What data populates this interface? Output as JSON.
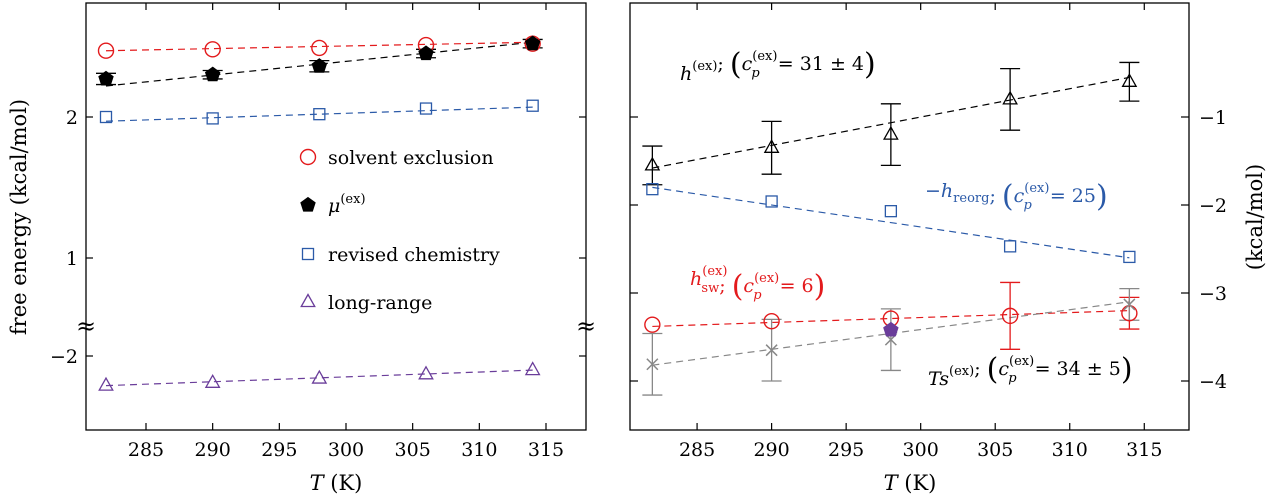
{
  "chart_data": [
    {
      "type": "scatter",
      "panel": "left",
      "xlabel": "T (K)",
      "ylabel": "free energy (kcal/mol)",
      "xlim": [
        280.5,
        318
      ],
      "x_ticks": [
        285,
        290,
        295,
        300,
        305,
        310,
        315
      ],
      "y_ticks": [
        {
          "value": 2,
          "label": "2"
        },
        {
          "value": 1,
          "label": "1"
        },
        {
          "value": -2,
          "label": "−2"
        }
      ],
      "axis_break": "≈",
      "legend_placement": "center",
      "series": [
        {
          "name": "solvent exclusion",
          "marker": "circle",
          "color": "#e31a1c",
          "x": [
            282,
            290,
            298,
            306,
            314
          ],
          "y": [
            2.47,
            2.48,
            2.49,
            2.51,
            2.52
          ],
          "fit": [
            2.47,
            2.53
          ]
        },
        {
          "name": "μ(ex)",
          "marker": "pentagon",
          "color": "#000000",
          "x": [
            282,
            290,
            298,
            306,
            314
          ],
          "y": [
            2.27,
            2.3,
            2.36,
            2.45,
            2.52
          ],
          "err": [
            0.04,
            0.03,
            0.04,
            0.03,
            0.03
          ],
          "fit": [
            2.22,
            2.53
          ]
        },
        {
          "name": "revised chemistry",
          "marker": "square",
          "color": "#2b5aa8",
          "x": [
            282,
            290,
            298,
            306,
            314
          ],
          "y": [
            2.0,
            1.99,
            2.02,
            2.06,
            2.08
          ],
          "fit": [
            1.97,
            2.07
          ]
        },
        {
          "name": "long-range",
          "marker": "triangle",
          "color": "#6a3d9a",
          "x": [
            282,
            290,
            298,
            306,
            314
          ],
          "y": [
            -2.21,
            -2.19,
            -2.16,
            -2.13,
            -2.1
          ],
          "fit": [
            -2.21,
            -2.1
          ]
        }
      ]
    },
    {
      "type": "scatter",
      "panel": "right",
      "xlabel": "T (K)",
      "ylabel": "(kcal/mol)",
      "xlim": [
        280.5,
        318
      ],
      "ylim": [
        -4.45,
        -0.05
      ],
      "x_ticks": [
        285,
        290,
        295,
        300,
        305,
        310,
        315
      ],
      "y_ticks": [
        {
          "value": -1,
          "label": "−1"
        },
        {
          "value": -2,
          "label": "−2"
        },
        {
          "value": -3,
          "label": "−3"
        },
        {
          "value": -4,
          "label": "−4"
        }
      ],
      "series": [
        {
          "name": "h(ex); (cp(ex) = 31 ± 4)",
          "marker": "triangle",
          "color": "#000000",
          "x": [
            282,
            290,
            298,
            306,
            314
          ],
          "y": [
            -1.55,
            -1.35,
            -1.2,
            -0.8,
            -0.6
          ],
          "err": [
            0.22,
            0.3,
            0.35,
            0.35,
            0.22
          ],
          "fit": [
            -1.58,
            -0.55
          ]
        },
        {
          "name": "−h_reorg; (cp(ex) = 25)",
          "marker": "square",
          "color": "#2b5aa8",
          "x": [
            282,
            290,
            298,
            306,
            314
          ],
          "y": [
            -1.82,
            -1.96,
            -2.07,
            -2.47,
            -2.59
          ],
          "fit": [
            -1.8,
            -2.6
          ]
        },
        {
          "name": "h_sw(ex); (cp(ex) = 6)",
          "marker": "circle",
          "color": "#e31a1c",
          "x": [
            282,
            290,
            298,
            306,
            314
          ],
          "y": [
            -3.36,
            -3.32,
            -3.29,
            -3.26,
            -3.23
          ],
          "err": [
            0,
            0,
            0,
            0.38,
            0.18
          ],
          "fit": [
            -3.38,
            -3.2
          ]
        },
        {
          "name": "Ts(ex); (cp(ex) = 34 ± 5)",
          "marker": "cross",
          "color": "#888888",
          "x": [
            282,
            290,
            298,
            306,
            314
          ],
          "y": [
            -3.81,
            -3.65,
            -3.53,
            null,
            -3.13
          ],
          "err": [
            0.35,
            0.35,
            0.35,
            0,
            0.18
          ],
          "fit": [
            -3.82,
            -3.1
          ]
        },
        {
          "name": "",
          "marker": "pentagon",
          "color": "#6a3d9a",
          "x": [
            298
          ],
          "y": [
            -3.42
          ]
        }
      ],
      "annotations": {
        "h_ex": {
          "base": "h",
          "sup": "(ex)",
          "sep": "; (",
          "cp": "c",
          "cp_sub": "p",
          "cp_sup": "(ex)",
          "rest": " = 31 ± 4)"
        },
        "h_reorg": {
          "base": "−h",
          "sub": "reorg",
          "sep": "; (",
          "cp": "c",
          "cp_sub": "p",
          "cp_sup": "(ex)",
          "rest": " = 25)"
        },
        "h_sw": {
          "base": "h",
          "sup": "(ex)",
          "sub": "sw",
          "sep": "; (",
          "cp": "c",
          "cp_sub": "p",
          "cp_sup": "(ex)",
          "rest": " = 6)"
        },
        "ts_ex": {
          "base": "Ts",
          "sup": "(ex)",
          "sep": "; (",
          "cp": "c",
          "cp_sub": "p",
          "cp_sup": "(ex)",
          "rest": " = 34 ± 5)"
        }
      }
    }
  ]
}
